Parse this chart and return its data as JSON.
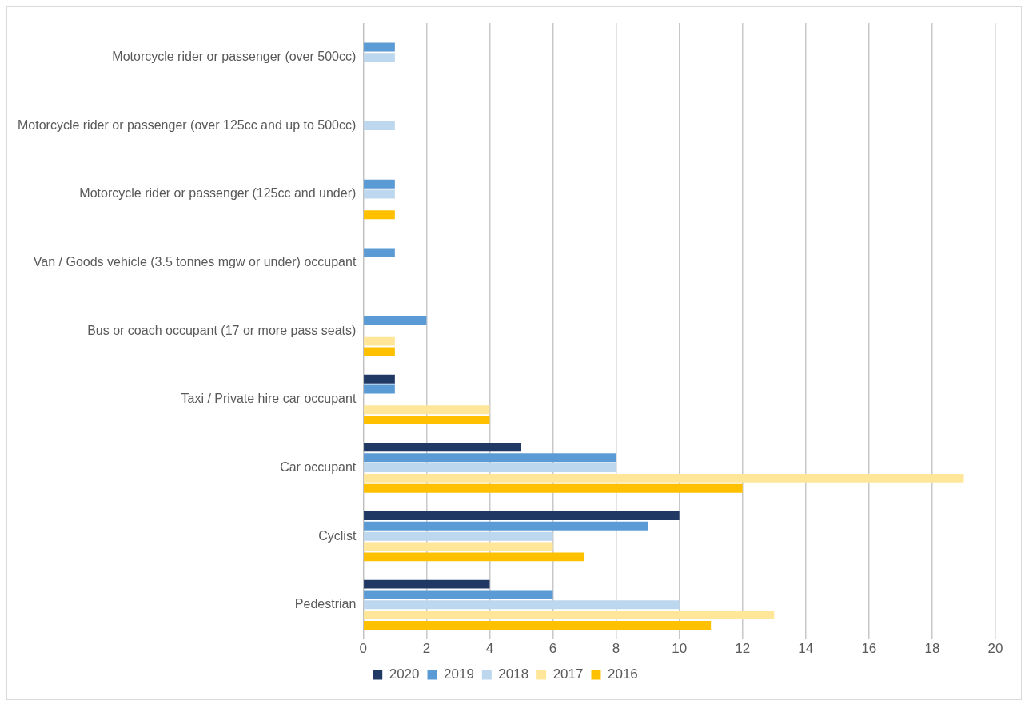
{
  "chart_data": {
    "type": "bar",
    "orientation": "horizontal",
    "categories": [
      "Motorcycle rider or passenger (over 500cc)",
      "Motorcycle rider or passenger (over 125cc and up to 500cc)",
      "Motorcycle rider or passenger (125cc and under)",
      "Van / Goods vehicle (3.5 tonnes mgw or under) occupant",
      "Bus or coach occupant (17 or more pass seats)",
      "Taxi / Private hire car occupant",
      "Car occupant",
      "Cyclist",
      "Pedestrian"
    ],
    "series": [
      {
        "name": "2020",
        "color": "#1f3864",
        "values": [
          0,
          0,
          0,
          0,
          0,
          1,
          5,
          10,
          4
        ]
      },
      {
        "name": "2019",
        "color": "#5b9bd5",
        "values": [
          1,
          0,
          1,
          1,
          2,
          1,
          8,
          9,
          6
        ]
      },
      {
        "name": "2018",
        "color": "#bdd7ee",
        "values": [
          1,
          1,
          1,
          0,
          0,
          0,
          8,
          6,
          10
        ]
      },
      {
        "name": "2017",
        "color": "#ffe699",
        "values": [
          0,
          0,
          0,
          0,
          1,
          4,
          19,
          6,
          13
        ]
      },
      {
        "name": "2016",
        "color": "#ffc000",
        "values": [
          0,
          0,
          1,
          0,
          1,
          4,
          12,
          7,
          11
        ]
      }
    ],
    "xlim": [
      0,
      20
    ],
    "xticks": [
      0,
      2,
      4,
      6,
      8,
      10,
      12,
      14,
      16,
      18,
      20
    ],
    "grid": "x",
    "legend": "bottom"
  }
}
